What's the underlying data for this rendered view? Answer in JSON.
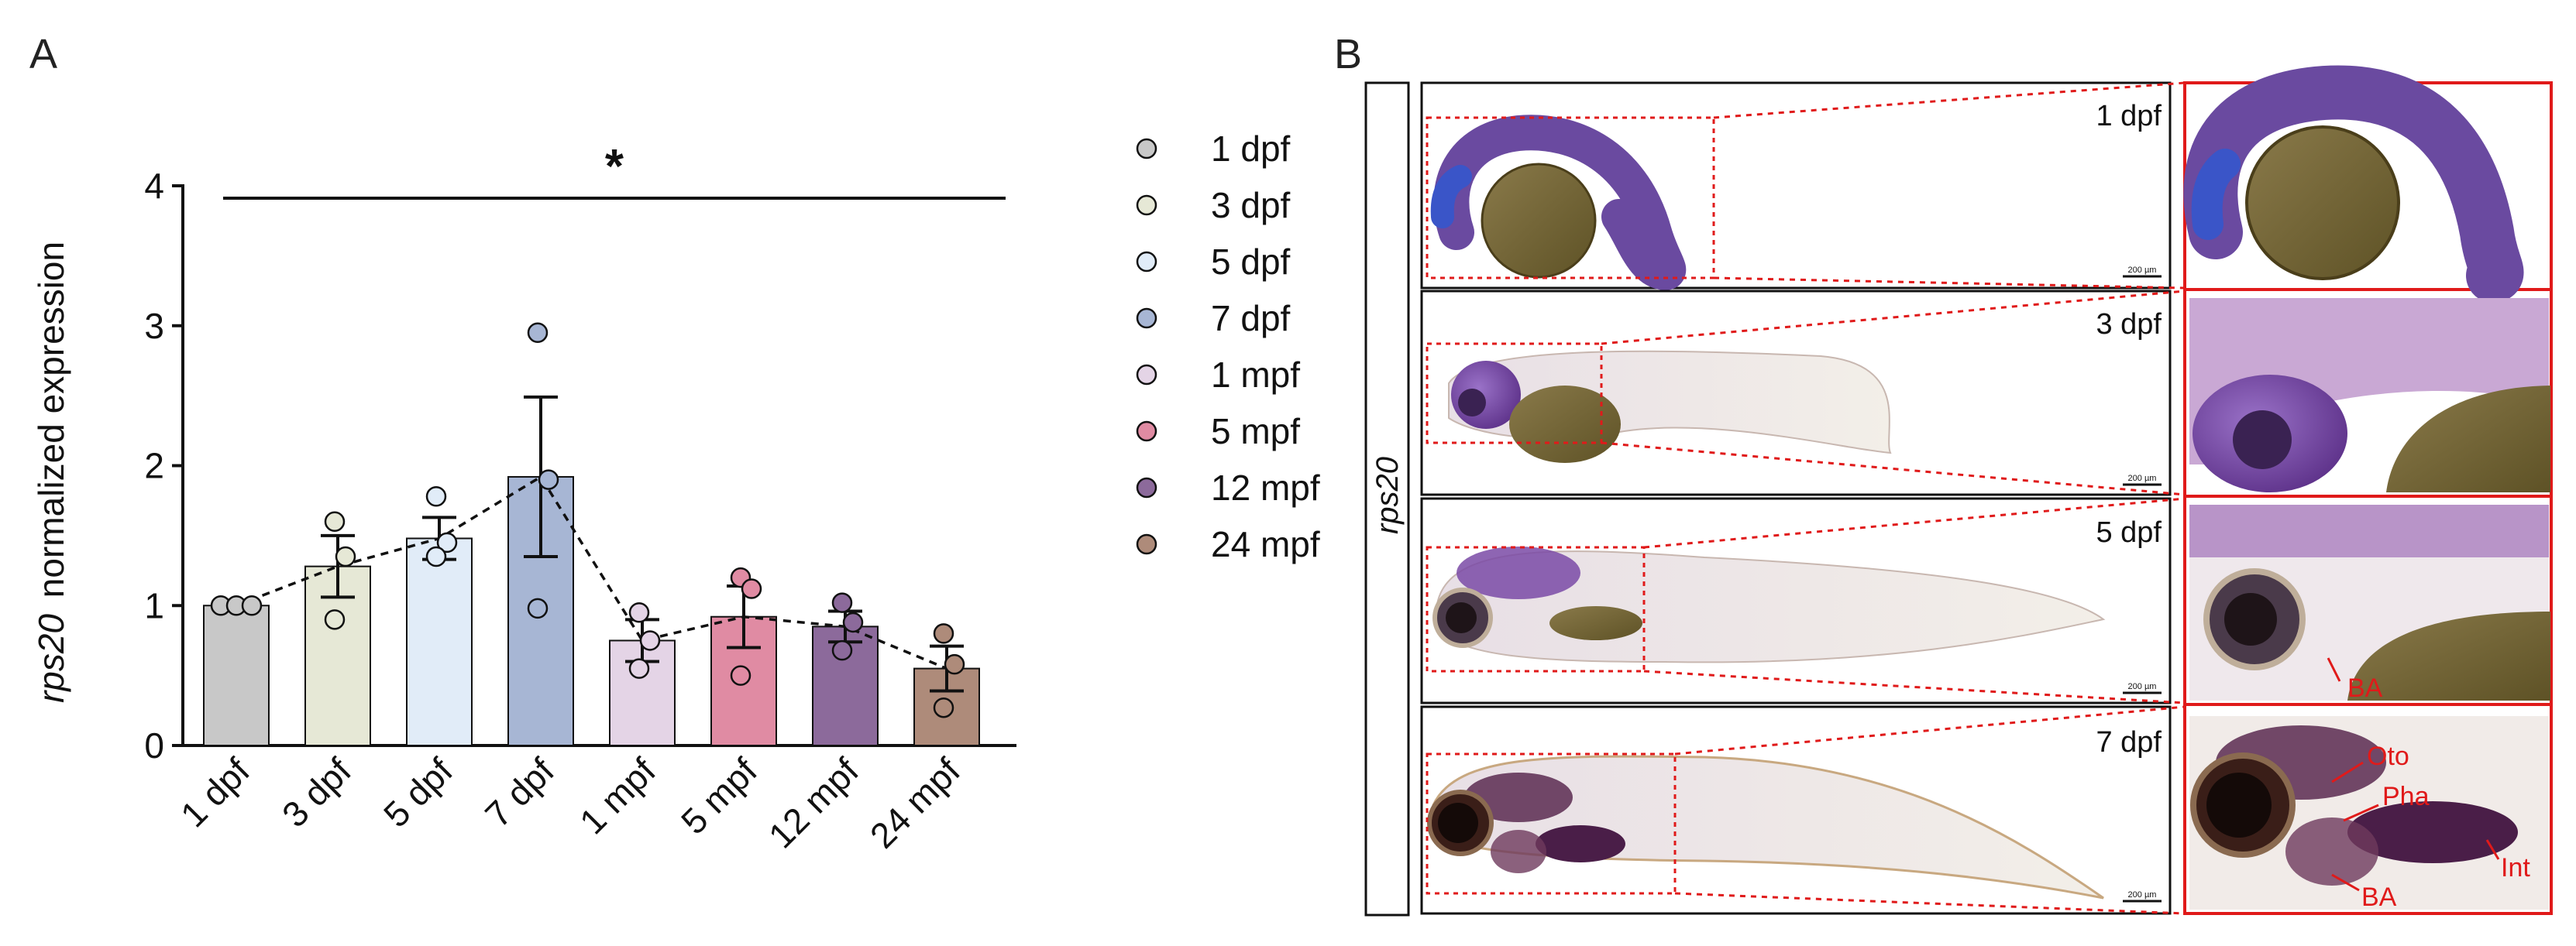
{
  "panel_a": {
    "letter": "A"
  },
  "panel_b": {
    "letter": "B",
    "row_label": "rps20"
  },
  "significance": "*",
  "colors": {
    "1 dpf": "#c8c8c8",
    "3 dpf": "#e6e8d6",
    "5 dpf": "#e1ecf8",
    "7 dpf": "#a7b6d4",
    "1 mpf": "#e4d4e6",
    "5 mpf": "#e08ba3",
    "12 mpf": "#8c6a9b",
    "24 mpf": "#ae8b7a"
  },
  "chart_data": {
    "type": "bar",
    "categories": [
      "1 dpf",
      "3 dpf",
      "5 dpf",
      "7 dpf",
      "1 mpf",
      "5 mpf",
      "12 mpf",
      "24 mpf"
    ],
    "values": [
      1.0,
      1.28,
      1.48,
      1.92,
      0.75,
      0.92,
      0.85,
      0.55
    ],
    "sem": [
      0.0,
      0.22,
      0.15,
      0.57,
      0.15,
      0.22,
      0.11,
      0.16
    ],
    "points": [
      [
        1.0,
        1.0,
        1.0
      ],
      [
        1.6,
        1.35,
        0.9
      ],
      [
        1.78,
        1.45,
        1.35
      ],
      [
        2.95,
        1.9,
        0.98
      ],
      [
        0.95,
        0.75,
        0.55
      ],
      [
        1.2,
        1.12,
        0.5
      ],
      [
        1.02,
        0.88,
        0.68
      ],
      [
        0.8,
        0.58,
        0.27
      ]
    ],
    "trend_line": "dashed line through means",
    "ylabel_italic": "rps20",
    "ylabel": "normalized expression",
    "xlabel": "",
    "ylim": [
      0,
      4
    ],
    "yticks": [
      "0",
      "1",
      "2",
      "3",
      "4"
    ],
    "legend": [
      "1 dpf",
      "3 dpf",
      "5 dpf",
      "7 dpf",
      "1 mpf",
      "5 mpf",
      "12 mpf",
      "24 mpf"
    ]
  },
  "images": [
    {
      "stage": "1 dpf",
      "scale": "200 µm",
      "annotations": []
    },
    {
      "stage": "3 dpf",
      "scale": "200 µm",
      "annotations": []
    },
    {
      "stage": "5 dpf",
      "scale": "200 µm",
      "annotations": [
        "BA"
      ]
    },
    {
      "stage": "7 dpf",
      "scale": "200 µm",
      "annotations": [
        "Oto",
        "Pha",
        "BA",
        "Int"
      ]
    }
  ]
}
